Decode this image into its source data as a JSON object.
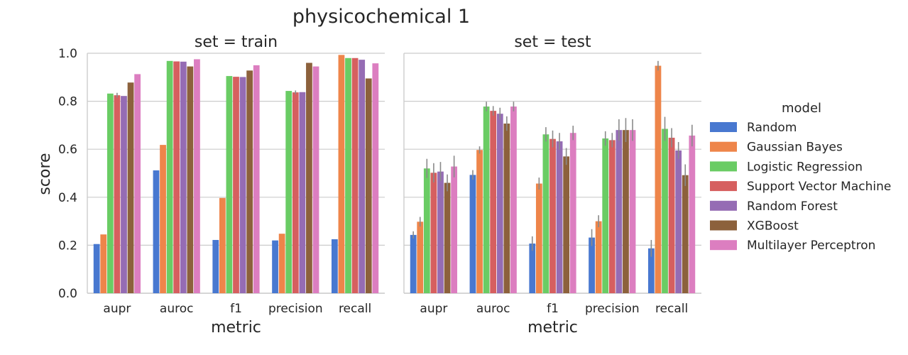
{
  "chart_data": {
    "type": "bar",
    "title": "physicochemical 1",
    "ylabel": "score",
    "ylim": [
      0,
      1.0
    ],
    "yticks": [
      "0.0",
      "0.2",
      "0.4",
      "0.6",
      "0.8",
      "1.0"
    ],
    "grid": true,
    "legend": {
      "title": "model",
      "placement": "right",
      "entries": [
        {
          "name": "Random",
          "color": "#4878d0"
        },
        {
          "name": "Gaussian Bayes",
          "color": "#ee854a"
        },
        {
          "name": "Logistic Regression",
          "color": "#6acc64"
        },
        {
          "name": "Support Vector Machine",
          "color": "#d65f5f"
        },
        {
          "name": "Random Forest",
          "color": "#956cb4"
        },
        {
          "name": "XGBoost",
          "color": "#8c613c"
        },
        {
          "name": "Multilayer Perceptron",
          "color": "#dc7ec0"
        }
      ]
    },
    "panels": [
      {
        "title": "set = train",
        "xlabel": "metric",
        "categories": [
          "aupr",
          "auroc",
          "f1",
          "precision",
          "recall"
        ],
        "series": [
          {
            "name": "Random",
            "values": [
              0.205,
              0.512,
              0.222,
              0.22,
              0.225
            ],
            "err": [
              0,
              0,
              0,
              0,
              0
            ]
          },
          {
            "name": "Gaussian Bayes",
            "values": [
              0.245,
              0.618,
              0.397,
              0.248,
              0.993
            ],
            "err": [
              0,
              0,
              0,
              0,
              0
            ]
          },
          {
            "name": "Logistic Regression",
            "values": [
              0.832,
              0.968,
              0.905,
              0.843,
              0.98
            ],
            "err": [
              0,
              0,
              0,
              0,
              0
            ]
          },
          {
            "name": "Support Vector Machine",
            "values": [
              0.825,
              0.966,
              0.902,
              0.837,
              0.98
            ],
            "err": [
              0.01,
              0,
              0,
              0.008,
              0
            ]
          },
          {
            "name": "Random Forest",
            "values": [
              0.822,
              0.965,
              0.901,
              0.838,
              0.973
            ],
            "err": [
              0,
              0,
              0,
              0,
              0
            ]
          },
          {
            "name": "XGBoost",
            "values": [
              0.878,
              0.945,
              0.928,
              0.96,
              0.895
            ],
            "err": [
              0,
              0,
              0,
              0,
              0
            ]
          },
          {
            "name": "Multilayer Perceptron",
            "values": [
              0.913,
              0.975,
              0.95,
              0.945,
              0.958
            ],
            "err": [
              0,
              0,
              0,
              0,
              0
            ]
          }
        ]
      },
      {
        "title": "set = test",
        "xlabel": "metric",
        "categories": [
          "aupr",
          "auroc",
          "f1",
          "precision",
          "recall"
        ],
        "series": [
          {
            "name": "Random",
            "values": [
              0.243,
              0.493,
              0.207,
              0.232,
              0.187
            ],
            "err": [
              0.015,
              0.02,
              0.03,
              0.035,
              0.035
            ]
          },
          {
            "name": "Gaussian Bayes",
            "values": [
              0.298,
              0.597,
              0.457,
              0.3,
              0.948
            ],
            "err": [
              0.02,
              0.015,
              0.025,
              0.025,
              0.02
            ]
          },
          {
            "name": "Logistic Regression",
            "values": [
              0.52,
              0.778,
              0.662,
              0.645,
              0.685
            ],
            "err": [
              0.04,
              0.02,
              0.03,
              0.03,
              0.05
            ]
          },
          {
            "name": "Support Vector Machine",
            "values": [
              0.502,
              0.76,
              0.643,
              0.638,
              0.648
            ],
            "err": [
              0.04,
              0.02,
              0.035,
              0.03,
              0.04
            ]
          },
          {
            "name": "Random Forest",
            "values": [
              0.507,
              0.748,
              0.633,
              0.68,
              0.595
            ],
            "err": [
              0.04,
              0.025,
              0.035,
              0.045,
              0.035
            ]
          },
          {
            "name": "XGBoost",
            "values": [
              0.46,
              0.707,
              0.57,
              0.68,
              0.492
            ],
            "err": [
              0.035,
              0.03,
              0.035,
              0.05,
              0.045
            ]
          },
          {
            "name": "Multilayer Perceptron",
            "values": [
              0.528,
              0.778,
              0.668,
              0.68,
              0.657
            ],
            "err": [
              0.045,
              0.02,
              0.03,
              0.045,
              0.045
            ]
          }
        ]
      }
    ]
  }
}
